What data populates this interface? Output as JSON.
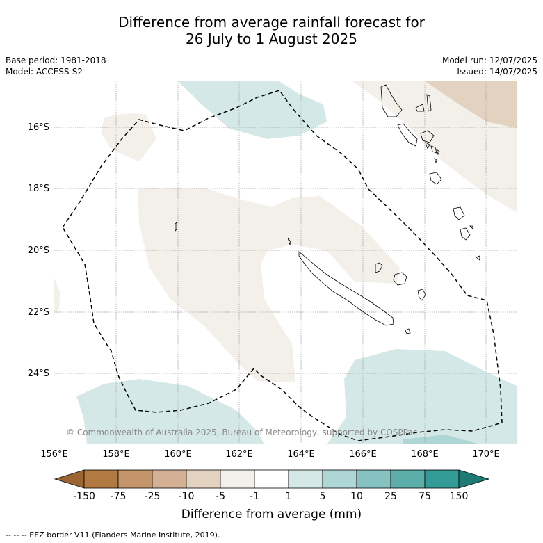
{
  "header": {
    "title_line1": "Difference from average rainfall forecast for",
    "title_line2": "26 July to 1 August 2025",
    "base_period": "Base period: 1981-2018",
    "model": "Model: ACCESS-S2",
    "model_run": "Model run: 12/07/2025",
    "issued": "Issued: 14/07/2025"
  },
  "map": {
    "copyright": "© Commonwealth of Australia 2025, Bureau of Meteorology, supported by COSPPac",
    "lat_labels": [
      "16°S",
      "18°S",
      "20°S",
      "22°S",
      "24°S"
    ],
    "lon_labels": [
      "156°E",
      "158°E",
      "160°E",
      "162°E",
      "164°E",
      "166°E",
      "168°E",
      "170°E"
    ],
    "colors": {
      "dry_light": "#f3efe9",
      "dry_mid": "#e4d2c1",
      "wet_light": "#d4e9e7",
      "border": "#000000"
    }
  },
  "colorbar": {
    "title": "Difference from average (mm)",
    "labels": [
      "-150",
      "-75",
      "-25",
      "-10",
      "-5",
      "-1",
      "1",
      "5",
      "10",
      "25",
      "75",
      "150"
    ],
    "colors": [
      "#9b6431",
      "#b27a40",
      "#c4956a",
      "#d4b194",
      "#e4d2c1",
      "#f3efe9",
      "#ffffff",
      "#d4e9e7",
      "#add6d5",
      "#86c2c1",
      "#5caeab",
      "#339b96",
      "#1f7a75"
    ]
  },
  "footnote": "--  --  -- EEZ border V11 (Flanders Marine Institute, 2019)."
}
